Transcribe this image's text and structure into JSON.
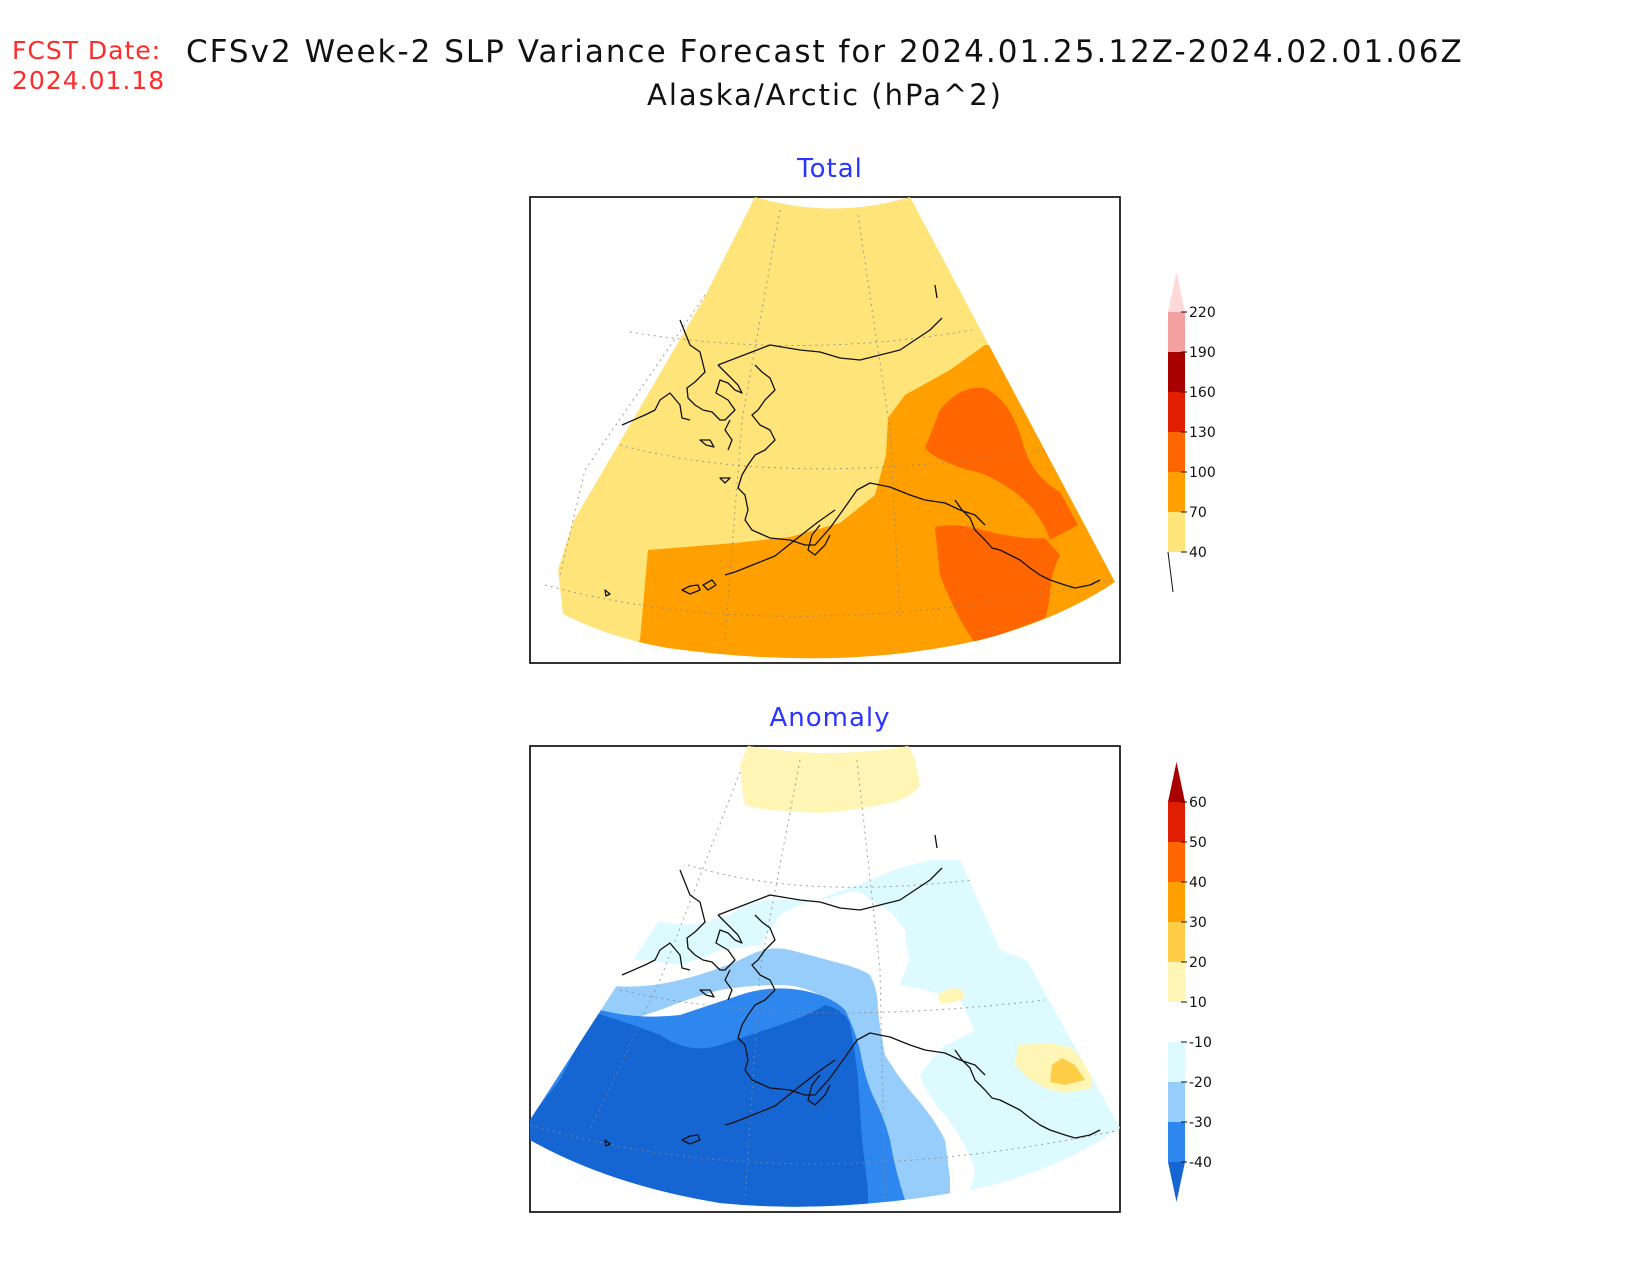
{
  "header": {
    "fcst_label": "FCST Date:",
    "fcst_date": "2024.01.18",
    "title": "CFSv2 Week-2 SLP Variance Forecast for 2024.01.25.12Z-2024.02.01.06Z",
    "subtitle": "Alaska/Arctic (hPa^2)"
  },
  "panels": {
    "total": {
      "title": "Total",
      "colorbar": {
        "labels": [
          "40",
          "70",
          "100",
          "130",
          "160",
          "190",
          "220"
        ],
        "colors": [
          "#ffe47a",
          "#ff9f00",
          "#ff6600",
          "#e01e00",
          "#a80000",
          "#f4a0a0",
          "#ffd8d8"
        ]
      },
      "fields": {
        "background": "#ffe47a",
        "level_70": "#ff9f00",
        "level_100": "#ff6600"
      }
    },
    "anomaly": {
      "title": "Anomaly",
      "colorbar": {
        "labels": [
          "-40",
          "-30",
          "-20",
          "-10",
          "10",
          "20",
          "30",
          "40",
          "50",
          "60"
        ],
        "colors": [
          "#1565d2",
          "#2e86ef",
          "#96cdfa",
          "#dcfaff",
          "#ffffff",
          "#fff5b4",
          "#ffcd46",
          "#ff9f00",
          "#ff6600",
          "#e01e00",
          "#a80000"
        ]
      }
    }
  }
}
